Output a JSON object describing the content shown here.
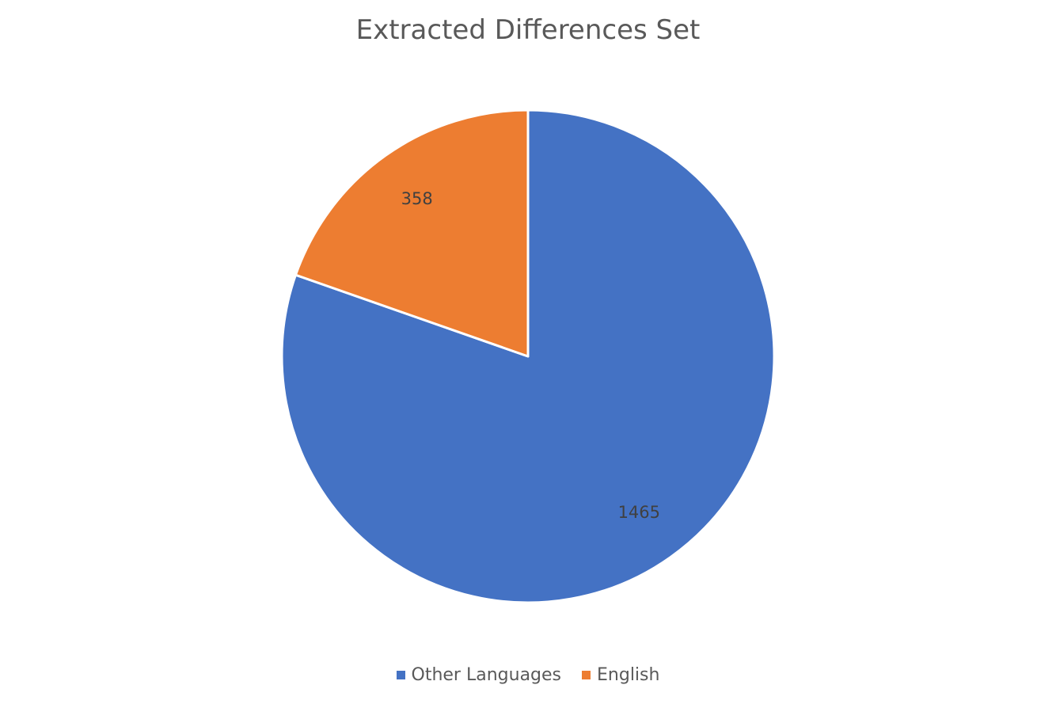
{
  "chart_data": {
    "type": "pie",
    "title": "Extracted Differences Set",
    "categories": [
      "Other Languages",
      "English"
    ],
    "values": [
      1465,
      358
    ],
    "colors": [
      "#4472C4",
      "#ED7D31"
    ],
    "data_labels": [
      "1465",
      "358"
    ],
    "legend_position": "bottom",
    "start_angle": "12 o'clock",
    "direction": "clockwise"
  }
}
